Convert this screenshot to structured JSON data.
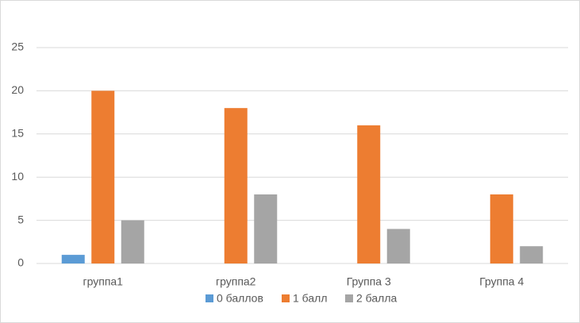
{
  "chart_data": {
    "type": "bar",
    "categories": [
      "группа1",
      "группа2",
      "Группа 3",
      "Группа 4"
    ],
    "series": [
      {
        "name": "0 баллов",
        "color": "#5b9bd5",
        "values": [
          1,
          0,
          0,
          0
        ]
      },
      {
        "name": "1 балл",
        "color": "#ed7d31",
        "values": [
          20,
          18,
          16,
          8
        ]
      },
      {
        "name": "2 балла",
        "color": "#a5a5a5",
        "values": [
          5,
          8,
          4,
          2
        ]
      }
    ],
    "ylim": [
      0,
      25
    ],
    "yticks": [
      0,
      5,
      10,
      15,
      20,
      25
    ],
    "grid": true,
    "legend": "bottom"
  }
}
